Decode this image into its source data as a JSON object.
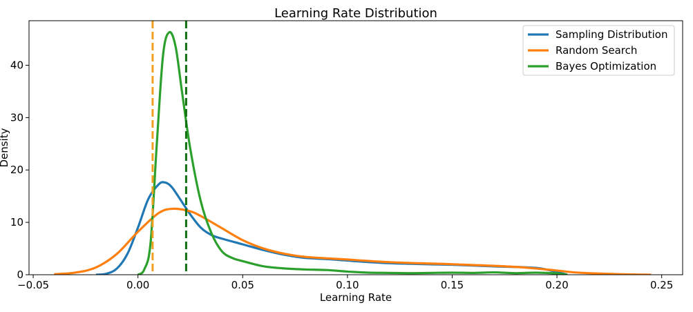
{
  "chart_data": {
    "type": "line",
    "title": "Learning Rate Distribution",
    "xlabel": "Learning Rate",
    "ylabel": "Density",
    "xlim": [
      -0.052,
      0.26
    ],
    "ylim": [
      0,
      48.5
    ],
    "xticks": [
      -0.05,
      0.0,
      0.05,
      0.1,
      0.15,
      0.2,
      0.25
    ],
    "xtick_labels": [
      "−0.05",
      "0.00",
      "0.05",
      "0.10",
      "0.15",
      "0.20",
      "0.25"
    ],
    "yticks": [
      0,
      10,
      20,
      30,
      40
    ],
    "ytick_labels": [
      "0",
      "10",
      "20",
      "30",
      "40"
    ],
    "grid": false,
    "legend_position": "top-right",
    "series": [
      {
        "name": "Sampling Distribution",
        "color": "#1f77b4",
        "x": [
          -0.02,
          -0.015,
          -0.01,
          -0.005,
          0.0,
          0.005,
          0.01,
          0.013,
          0.016,
          0.02,
          0.025,
          0.03,
          0.035,
          0.04,
          0.05,
          0.06,
          0.07,
          0.08,
          0.09,
          0.1,
          0.12,
          0.15,
          0.17,
          0.19,
          0.2,
          0.205
        ],
        "y": [
          0.0,
          0.2,
          1.2,
          4.0,
          9.0,
          14.5,
          17.3,
          17.6,
          16.8,
          14.5,
          11.5,
          9.0,
          7.6,
          6.9,
          5.8,
          4.7,
          3.8,
          3.2,
          3.0,
          2.7,
          2.2,
          1.9,
          1.6,
          1.3,
          0.5,
          0.0
        ]
      },
      {
        "name": "Random Search",
        "color": "#ff7f0e",
        "x": [
          -0.04,
          -0.03,
          -0.02,
          -0.01,
          0.0,
          0.01,
          0.017,
          0.025,
          0.03,
          0.04,
          0.05,
          0.06,
          0.07,
          0.08,
          0.1,
          0.12,
          0.15,
          0.18,
          0.2,
          0.21,
          0.23,
          0.245
        ],
        "y": [
          0.1,
          0.4,
          1.4,
          4.0,
          8.2,
          11.8,
          12.6,
          12.1,
          11.2,
          8.9,
          6.6,
          5.0,
          4.0,
          3.4,
          2.9,
          2.4,
          2.0,
          1.5,
          0.8,
          0.4,
          0.1,
          0.0
        ]
      },
      {
        "name": "Bayes Optimization",
        "color": "#2ca02c",
        "x": [
          0.0,
          0.003,
          0.006,
          0.009,
          0.012,
          0.015,
          0.018,
          0.021,
          0.025,
          0.03,
          0.035,
          0.04,
          0.045,
          0.05,
          0.06,
          0.07,
          0.08,
          0.09,
          0.1,
          0.11,
          0.12,
          0.13,
          0.14,
          0.15,
          0.16,
          0.17,
          0.18,
          0.19,
          0.2,
          0.205
        ],
        "y": [
          0.0,
          1.0,
          6.0,
          25.0,
          42.0,
          46.3,
          43.5,
          35.0,
          24.0,
          14.0,
          8.0,
          4.5,
          3.2,
          2.6,
          1.6,
          1.2,
          1.0,
          0.9,
          0.6,
          0.4,
          0.35,
          0.3,
          0.35,
          0.4,
          0.35,
          0.45,
          0.3,
          0.4,
          0.25,
          0.0
        ]
      }
    ],
    "vlines": [
      {
        "x": 0.007,
        "color": "#f0a020",
        "style": "dashed"
      },
      {
        "x": 0.023,
        "color": "#107010",
        "style": "dashed"
      }
    ]
  }
}
